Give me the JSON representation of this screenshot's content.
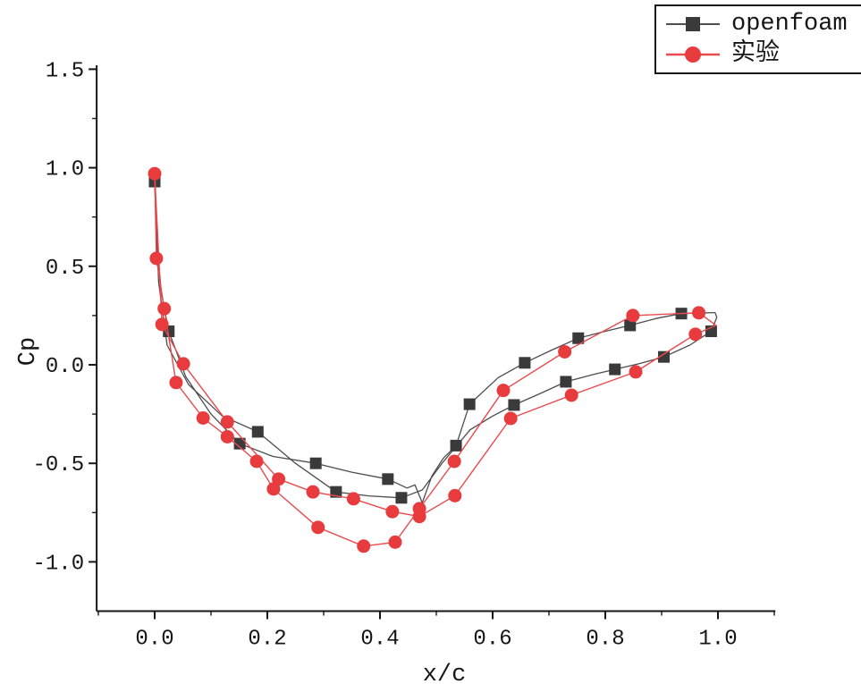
{
  "figure": {
    "background": "#ffffff",
    "axis_color": "#161616"
  },
  "chart_data": {
    "type": "line",
    "title": "",
    "xlabel": "x/c",
    "ylabel": "Cp",
    "xlim": [
      -0.103,
      1.102
    ],
    "ylim": [
      -1.25,
      1.52
    ],
    "xticks": [
      0.0,
      0.2,
      0.4,
      0.6,
      0.8,
      1.0
    ],
    "yticks": [
      -1.0,
      -0.5,
      0.0,
      0.5,
      1.0,
      1.5
    ],
    "x_minor_ticks": [
      -0.1,
      0.1,
      0.3,
      0.5,
      0.7,
      0.9,
      1.1
    ],
    "y_minor_ticks": [
      -0.75,
      -0.25,
      0.25,
      0.75,
      1.25
    ],
    "grid": false,
    "legend_position": "top-right",
    "series": [
      {
        "name": "openfoam",
        "marker": "square",
        "marker_color": "#3a3a3a",
        "line_color": "#4d4d4d",
        "marker_size": 13,
        "line_width": 1.3,
        "branches": [
          {
            "id": "suction-side",
            "points": [
              [
                0.0,
                0.93,
                1
              ],
              [
                0.004,
                0.62,
                0
              ],
              [
                0.012,
                0.36,
                0
              ],
              [
                0.025,
                0.17,
                1
              ],
              [
                0.055,
                -0.06,
                0
              ],
              [
                0.1,
                -0.25,
                0
              ],
              [
                0.151,
                -0.4,
                1
              ],
              [
                0.21,
                -0.465,
                0
              ],
              [
                0.286,
                -0.5,
                1
              ],
              [
                0.35,
                -0.545,
                0
              ],
              [
                0.414,
                -0.58,
                1
              ],
              [
                0.448,
                -0.625,
                0
              ],
              [
                0.462,
                -0.61,
                0
              ],
              [
                0.475,
                -0.7,
                0
              ],
              [
                0.492,
                -0.565,
                0
              ],
              [
                0.512,
                -0.475,
                0
              ],
              [
                0.535,
                -0.41,
                1
              ],
              [
                0.559,
                -0.2,
                1
              ],
              [
                0.61,
                -0.065,
                0
              ],
              [
                0.657,
                0.01,
                1
              ],
              [
                0.705,
                0.075,
                0
              ],
              [
                0.752,
                0.135,
                1
              ],
              [
                0.8,
                0.17,
                0
              ],
              [
                0.844,
                0.2,
                1
              ],
              [
                0.89,
                0.235,
                0
              ],
              [
                0.935,
                0.26,
                1
              ],
              [
                0.995,
                0.265,
                0
              ]
            ]
          },
          {
            "id": "pressure-side",
            "points": [
              [
                0.0,
                0.93,
                0
              ],
              [
                0.007,
                0.42,
                0
              ],
              [
                0.022,
                0.1,
                0
              ],
              [
                0.06,
                -0.1,
                0
              ],
              [
                0.12,
                -0.26,
                0
              ],
              [
                0.183,
                -0.34,
                1
              ],
              [
                0.25,
                -0.5,
                0
              ],
              [
                0.322,
                -0.645,
                1
              ],
              [
                0.38,
                -0.665,
                0
              ],
              [
                0.438,
                -0.675,
                1
              ],
              [
                0.475,
                -0.635,
                0
              ],
              [
                0.51,
                -0.5,
                0
              ],
              [
                0.56,
                -0.33,
                0
              ],
              [
                0.6,
                -0.26,
                0
              ],
              [
                0.638,
                -0.204,
                1
              ],
              [
                0.685,
                -0.145,
                0
              ],
              [
                0.73,
                -0.086,
                1
              ],
              [
                0.78,
                -0.048,
                0
              ],
              [
                0.817,
                -0.023,
                1
              ],
              [
                0.86,
                0.006,
                0
              ],
              [
                0.904,
                0.04,
                1
              ],
              [
                0.95,
                0.1,
                0
              ],
              [
                0.988,
                0.17,
                1
              ],
              [
                0.998,
                0.24,
                0
              ],
              [
                0.995,
                0.265,
                0
              ]
            ]
          }
        ]
      },
      {
        "name": "实验",
        "marker": "circle",
        "marker_color": "#e83b3e",
        "line_color": "#e84a4e",
        "marker_size": 15,
        "line_width": 1.4,
        "branches": [
          {
            "id": "suction-side",
            "points": [
              [
                0.0,
                0.97,
                1
              ],
              [
                0.003,
                0.54,
                1
              ],
              [
                0.017,
                0.285,
                1
              ],
              [
                0.038,
                -0.09,
                1
              ],
              [
                0.086,
                -0.27,
                1
              ],
              [
                0.129,
                -0.365,
                1
              ],
              [
                0.181,
                -0.49,
                1
              ],
              [
                0.211,
                -0.63,
                1
              ],
              [
                0.29,
                -0.825,
                1
              ],
              [
                0.371,
                -0.92,
                1
              ],
              [
                0.427,
                -0.9,
                1
              ],
              [
                0.47,
                -0.73,
                1
              ],
              [
                0.532,
                -0.49,
                1
              ],
              [
                0.619,
                -0.13,
                1
              ],
              [
                0.728,
                0.066,
                1
              ],
              [
                0.849,
                0.25,
                1
              ],
              [
                0.966,
                0.264,
                1
              ],
              [
                0.997,
                0.2,
                0
              ]
            ]
          },
          {
            "id": "pressure-side",
            "points": [
              [
                0.0,
                0.97,
                0
              ],
              [
                0.013,
                0.205,
                1
              ],
              [
                0.051,
                0.005,
                1
              ],
              [
                0.129,
                -0.29,
                1
              ],
              [
                0.22,
                -0.58,
                1
              ],
              [
                0.281,
                -0.645,
                1
              ],
              [
                0.353,
                -0.68,
                1
              ],
              [
                0.422,
                -0.745,
                1
              ],
              [
                0.47,
                -0.77,
                1
              ],
              [
                0.533,
                -0.664,
                1
              ],
              [
                0.632,
                -0.272,
                1
              ],
              [
                0.74,
                -0.154,
                1
              ],
              [
                0.854,
                -0.036,
                1
              ],
              [
                0.96,
                0.155,
                1
              ],
              [
                0.997,
                0.2,
                0
              ]
            ]
          }
        ]
      }
    ]
  },
  "legend": {
    "entries": [
      {
        "label": "openfoam"
      },
      {
        "label": "实验"
      }
    ]
  }
}
